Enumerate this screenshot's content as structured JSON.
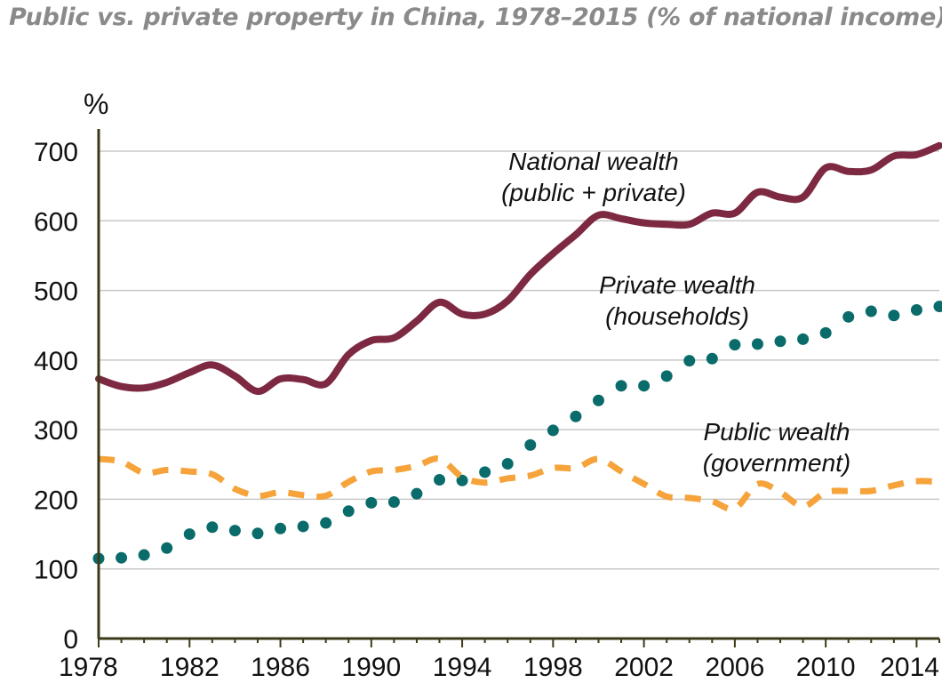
{
  "chart_data": {
    "type": "line",
    "title": "Public vs. private property in China, 1978–2015 (% of national income)",
    "ylabel": "%",
    "xlabel": "",
    "ylim": [
      0,
      700
    ],
    "xlim": [
      1978,
      2015
    ],
    "grid": true,
    "y_ticks": [
      0,
      100,
      200,
      300,
      400,
      500,
      600,
      700
    ],
    "x_ticks": [
      1978,
      1982,
      1986,
      1990,
      1994,
      1998,
      2002,
      2006,
      2010,
      2014
    ],
    "series": [
      {
        "name": "National wealth (public + private)",
        "label_lines": [
          "National wealth",
          "(public + private)"
        ],
        "style": "solid",
        "color": "#7d2942",
        "x": [
          1978,
          1979,
          1980,
          1981,
          1982,
          1983,
          1984,
          1985,
          1986,
          1987,
          1988,
          1989,
          1990,
          1991,
          1992,
          1993,
          1994,
          1995,
          1996,
          1997,
          1998,
          1999,
          2000,
          2001,
          2002,
          2003,
          2004,
          2005,
          2006,
          2007,
          2008,
          2009,
          2010,
          2011,
          2012,
          2013,
          2014,
          2015
        ],
        "values": [
          373,
          362,
          360,
          368,
          382,
          393,
          377,
          355,
          373,
          372,
          366,
          408,
          428,
          432,
          456,
          483,
          466,
          466,
          485,
          523,
          553,
          580,
          608,
          603,
          597,
          595,
          595,
          611,
          611,
          641,
          634,
          634,
          676,
          671,
          673,
          693,
          695,
          708
        ]
      },
      {
        "name": "Private wealth (households)",
        "label_lines": [
          "Private wealth",
          "(households)"
        ],
        "style": "dotted",
        "color": "#0a6b6b",
        "x": [
          1978,
          1979,
          1980,
          1981,
          1982,
          1983,
          1984,
          1985,
          1986,
          1987,
          1988,
          1989,
          1990,
          1991,
          1992,
          1993,
          1994,
          1995,
          1996,
          1997,
          1998,
          1999,
          2000,
          2001,
          2002,
          2003,
          2004,
          2005,
          2006,
          2007,
          2008,
          2009,
          2010,
          2011,
          2012,
          2013,
          2014,
          2015
        ],
        "values": [
          115,
          116,
          120,
          130,
          150,
          160,
          155,
          151,
          158,
          161,
          166,
          183,
          195,
          196,
          208,
          228,
          227,
          239,
          251,
          278,
          299,
          319,
          342,
          363,
          363,
          377,
          399,
          402,
          422,
          423,
          427,
          430,
          439,
          462,
          470,
          464,
          472,
          477
        ]
      },
      {
        "name": "Public wealth (government)",
        "label_lines": [
          "Public wealth",
          "(government)"
        ],
        "style": "dashed",
        "color": "#f5a33a",
        "x": [
          1978,
          1979,
          1980,
          1981,
          1982,
          1983,
          1984,
          1985,
          1986,
          1987,
          1988,
          1989,
          1990,
          1991,
          1992,
          1993,
          1994,
          1995,
          1996,
          1997,
          1998,
          1999,
          2000,
          2001,
          2002,
          2003,
          2004,
          2005,
          2006,
          2007,
          2008,
          2009,
          2010,
          2011,
          2012,
          2013,
          2014,
          2015
        ],
        "values": [
          258,
          254,
          238,
          242,
          240,
          236,
          215,
          205,
          210,
          206,
          205,
          225,
          240,
          242,
          248,
          258,
          232,
          224,
          230,
          234,
          245,
          245,
          258,
          240,
          222,
          204,
          202,
          197,
          187,
          222,
          210,
          190,
          210,
          212,
          212,
          220,
          226,
          225
        ]
      }
    ]
  }
}
